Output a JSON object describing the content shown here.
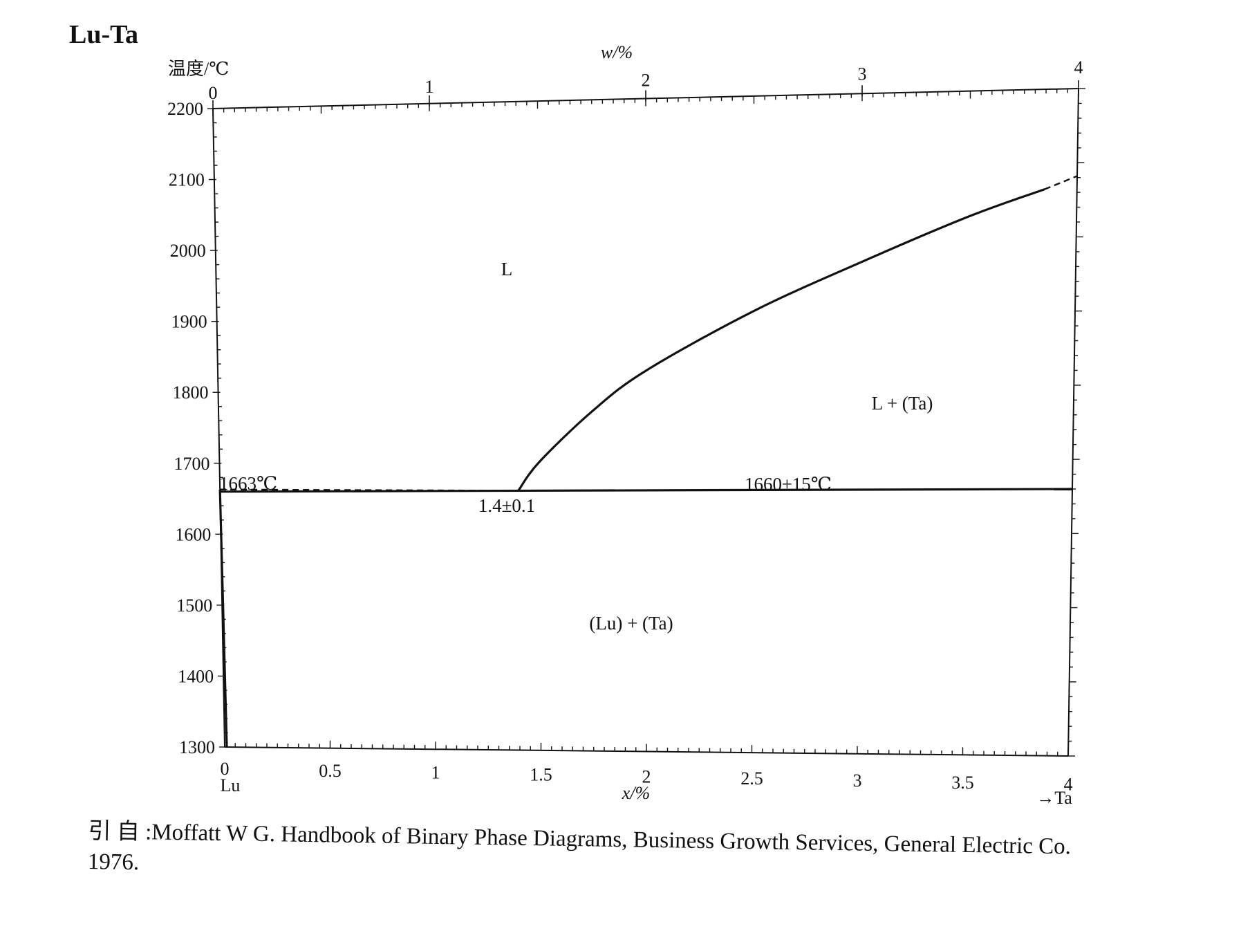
{
  "page": {
    "title": "Lu-Ta"
  },
  "chart_data": {
    "type": "line",
    "title": "Lu-Ta",
    "ylabel": "温度/℃",
    "xlabel": "x/%",
    "x_top_label": "w/%",
    "ylim": [
      1300,
      2200
    ],
    "xlim": [
      0,
      4
    ],
    "yticks": [
      "1300",
      "1400",
      "1500",
      "1600",
      "1700",
      "1800",
      "1900",
      "2000",
      "2100",
      "2200"
    ],
    "xticks_bottom": [
      "0",
      "0.5",
      "1",
      "1.5",
      "2",
      "2.5",
      "3",
      "3.5",
      "4"
    ],
    "xticks_top": [
      "0",
      "1",
      "2",
      "3",
      "4"
    ],
    "left_element": "Lu",
    "right_element": "→Ta",
    "regions": [
      "L",
      "L + (Ta)",
      "(Lu) + (Ta)"
    ],
    "annotations": {
      "lu_melting": "1663℃",
      "eutectic_point": "1.4±0.1",
      "eutectic_temp": "1660±15℃"
    },
    "series": [
      {
        "style": "solid",
        "points": [
          [
            1.4,
            1660
          ],
          [
            1.5,
            1700
          ],
          [
            1.75,
            1770
          ],
          [
            2.0,
            1825
          ],
          [
            2.5,
            1905
          ],
          [
            3.0,
            1970
          ],
          [
            3.5,
            2030
          ],
          [
            3.85,
            2065
          ]
        ]
      },
      {
        "style": "dashed",
        "points": [
          [
            3.85,
            2065
          ],
          [
            4.0,
            2082
          ]
        ]
      },
      {
        "style": "solid",
        "points": [
          [
            0,
            1660
          ],
          [
            4.0,
            1660
          ]
        ]
      },
      {
        "style": "dashed",
        "points": [
          [
            0,
            1663
          ],
          [
            1.4,
            1660
          ]
        ]
      },
      {
        "style": "solid",
        "points": [
          [
            0,
            1663
          ],
          [
            0.01,
            1300
          ]
        ]
      }
    ]
  },
  "citation": {
    "line1": "引 自 :Moffatt W G.  Handbook of Binary Phase Diagrams, Business Growth Services, General Electric Co.",
    "line2": "1976."
  }
}
